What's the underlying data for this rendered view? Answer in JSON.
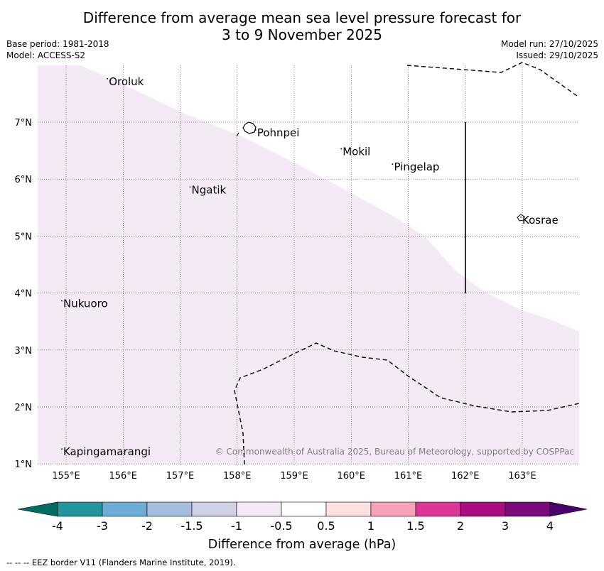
{
  "title": {
    "line1": "Difference from average mean sea level pressure forecast for",
    "line2": "3 to 9 November 2025"
  },
  "meta": {
    "base_period": "Base period: 1981-2018",
    "model": "Model: ACCESS-S2",
    "model_run": "Model run: 27/10/2025",
    "issued": "Issued: 29/10/2025"
  },
  "axes": {
    "lon_labels": [
      "155°E",
      "156°E",
      "157°E",
      "158°E",
      "159°E",
      "160°E",
      "161°E",
      "162°E",
      "163°E"
    ],
    "lat_labels": [
      "7°N",
      "6°N",
      "5°N",
      "4°N",
      "3°N",
      "2°N",
      "1°N"
    ]
  },
  "places": [
    {
      "name": "Oroluk",
      "lon": 155.75,
      "lat": 7.65
    },
    {
      "name": "Pohnpei",
      "lon": 158.35,
      "lat": 6.75
    },
    {
      "name": "Mokil",
      "lon": 159.85,
      "lat": 6.42
    },
    {
      "name": "Pingelap",
      "lon": 160.75,
      "lat": 6.15
    },
    {
      "name": "Ngatik",
      "lon": 157.2,
      "lat": 5.75
    },
    {
      "name": "Kosrae",
      "lon": 163.0,
      "lat": 5.22
    },
    {
      "name": "Nukuoro",
      "lon": 154.95,
      "lat": 3.75
    },
    {
      "name": "Kapingamarangi",
      "lon": 154.95,
      "lat": 1.15
    }
  ],
  "copyright": "© Commonwealth of Australia 2025, Bureau of Meteorology, supported by COSPPac",
  "legend": {
    "tick_labels": [
      "-4",
      "-3",
      "-2",
      "-1.5",
      "-1",
      "-0.5",
      "0.5",
      "1",
      "1.5",
      "2",
      "3",
      "4"
    ],
    "colors": [
      "#006b62",
      "#21969c",
      "#6cadd5",
      "#a6bcdc",
      "#d0d0e6",
      "#f3eaf6",
      "#ffffff",
      "#fde0df",
      "#f8a2b8",
      "#dc3797",
      "#aa0c82",
      "#7c0a7d",
      "#4a0068"
    ],
    "label": "Difference from average (hPa)"
  },
  "footer": "--  --  -- EEZ border V11 (Flanders Marine Institute, 2019)."
}
